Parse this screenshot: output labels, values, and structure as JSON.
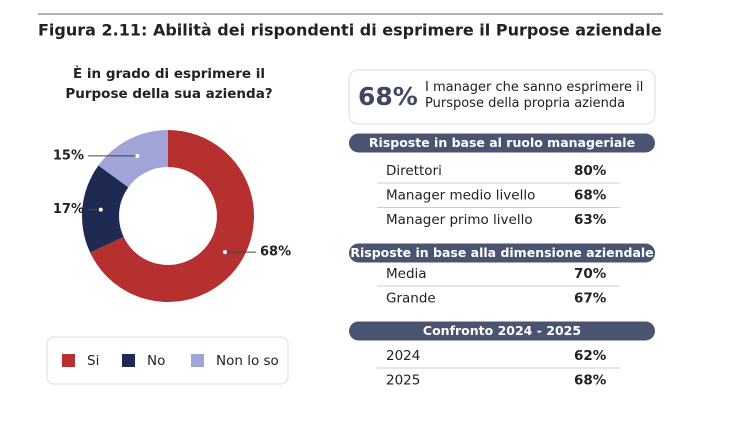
{
  "chart_data": {
    "type": "donut",
    "title": "Figura 2.11: Abilità dei rispondenti di esprimere il Purpose aziendale",
    "subtitle": "È in grado di esprimere il Purpose della sua azienda?",
    "categories": [
      "Si",
      "No",
      "Non lo so"
    ],
    "values": [
      68,
      17,
      15
    ],
    "value_labels": [
      "68%",
      "17%",
      "15%"
    ],
    "colors": [
      "#b5302e",
      "#1e2a52",
      "#a1a4d6"
    ],
    "legend": "bottom"
  },
  "panel": {
    "highlight": {
      "value": "68%",
      "text": "I manager che sanno esprimere il Purspose della propria azienda"
    },
    "sections": [
      {
        "title": "Risposte in base al ruolo manageriale",
        "rows": [
          [
            "Direttori",
            "80%"
          ],
          [
            "Manager medio livello",
            "68%"
          ],
          [
            "Manager primo livello",
            "63%"
          ]
        ]
      },
      {
        "title": "Risposte in base alla dimensione aziendale",
        "rows": [
          [
            "Media",
            "70%"
          ],
          [
            "Grande",
            "67%"
          ]
        ]
      },
      {
        "title": "Confronto 2024 - 2025",
        "rows": [
          [
            "2024",
            "62%"
          ],
          [
            "2025",
            "68%"
          ]
        ]
      }
    ]
  }
}
